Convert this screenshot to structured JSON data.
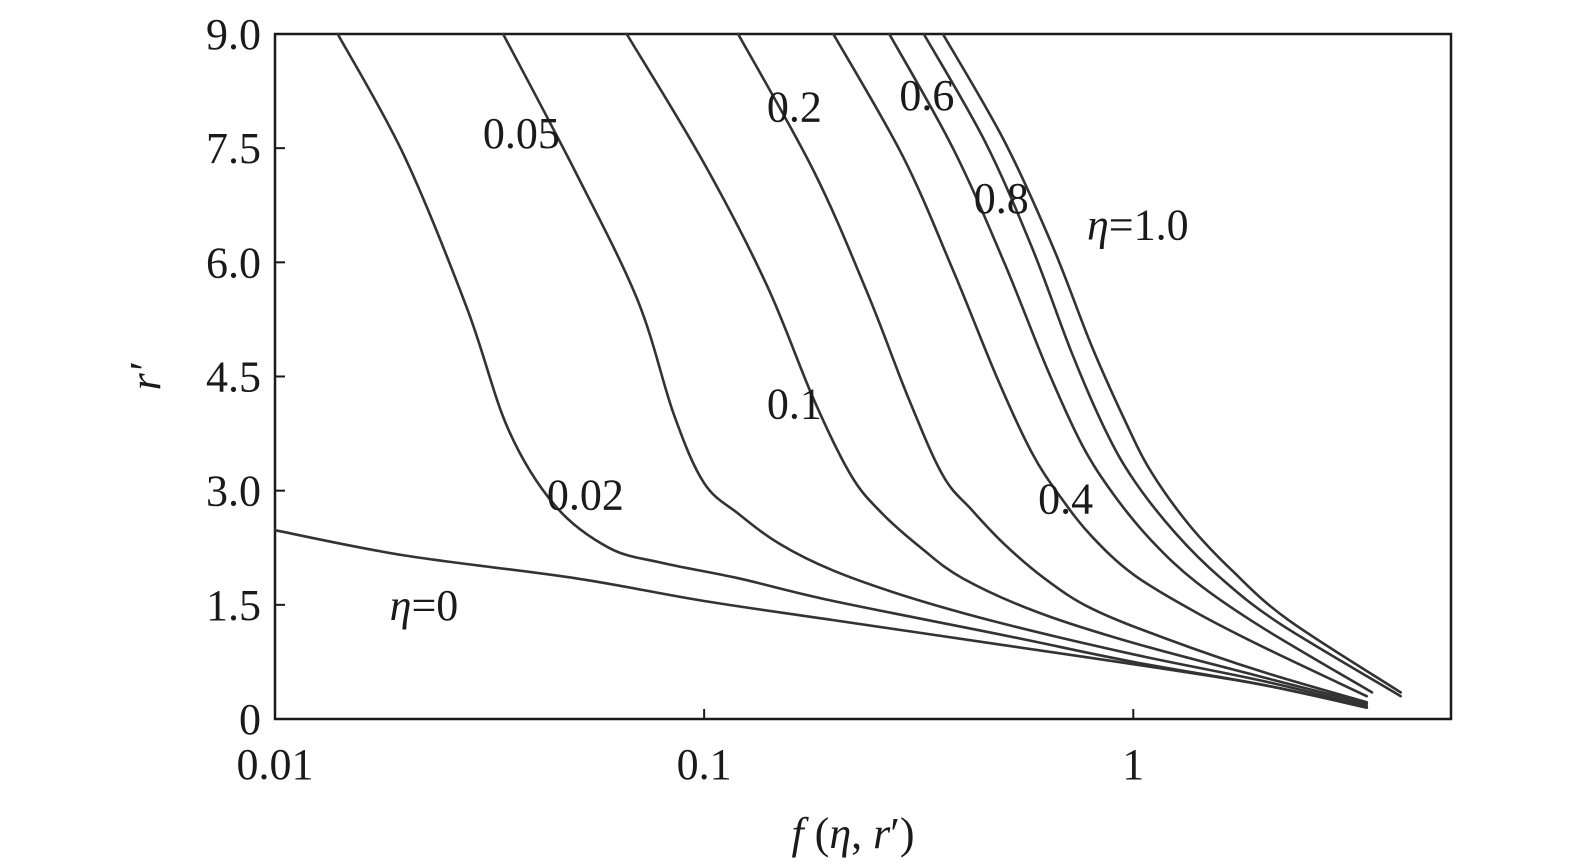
{
  "chart_data": {
    "type": "line",
    "title": "",
    "xlabel": "f (η, r′)",
    "ylabel": "r′",
    "x_scale": "log",
    "xlim": [
      0.01,
      5.5
    ],
    "ylim": [
      0,
      9.0
    ],
    "x_ticks": [
      {
        "value": 0.01,
        "label": "0.01"
      },
      {
        "value": 0.1,
        "label": "0.1"
      },
      {
        "value": 1,
        "label": "1"
      }
    ],
    "y_ticks": [
      {
        "value": 0,
        "label": "0"
      },
      {
        "value": 1.5,
        "label": "1.5"
      },
      {
        "value": 3.0,
        "label": "3.0"
      },
      {
        "value": 4.5,
        "label": "4.5"
      },
      {
        "value": 6.0,
        "label": "6.0"
      },
      {
        "value": 7.5,
        "label": "7.5"
      },
      {
        "value": 9.0,
        "label": "9.0"
      }
    ],
    "grid": false,
    "legend": "none",
    "series": [
      {
        "eta": 0,
        "label": "η=0",
        "label_pos": [
          0.0185,
          1.3
        ],
        "points": [
          [
            0.01,
            2.48
          ],
          [
            0.02,
            2.15
          ],
          [
            0.05,
            1.85
          ],
          [
            0.1,
            1.55
          ],
          [
            0.2,
            1.3
          ],
          [
            0.5,
            0.97
          ],
          [
            1.0,
            0.72
          ],
          [
            2.0,
            0.45
          ],
          [
            3.5,
            0.15
          ]
        ]
      },
      {
        "eta": 0.02,
        "label": "0.02",
        "label_pos": [
          0.043,
          2.75
        ],
        "points": [
          [
            0.014,
            9.0
          ],
          [
            0.02,
            7.4
          ],
          [
            0.028,
            5.4
          ],
          [
            0.035,
            3.8
          ],
          [
            0.045,
            2.8
          ],
          [
            0.06,
            2.25
          ],
          [
            0.08,
            2.05
          ],
          [
            0.12,
            1.85
          ],
          [
            0.2,
            1.55
          ],
          [
            0.5,
            1.1
          ],
          [
            1.0,
            0.75
          ],
          [
            2.0,
            0.45
          ],
          [
            3.5,
            0.15
          ]
        ]
      },
      {
        "eta": 0.05,
        "label": "0.05",
        "label_pos": [
          0.0305,
          7.5
        ],
        "points": [
          [
            0.034,
            9.0
          ],
          [
            0.05,
            7.2
          ],
          [
            0.07,
            5.5
          ],
          [
            0.085,
            4.0
          ],
          [
            0.1,
            3.1
          ],
          [
            0.12,
            2.7
          ],
          [
            0.15,
            2.3
          ],
          [
            0.2,
            1.95
          ],
          [
            0.3,
            1.6
          ],
          [
            0.5,
            1.25
          ],
          [
            1.0,
            0.85
          ],
          [
            2.0,
            0.5
          ],
          [
            3.5,
            0.17
          ]
        ]
      },
      {
        "eta": 0.1,
        "label": "0.1",
        "label_pos": [
          0.14,
          3.95
        ],
        "points": [
          [
            0.066,
            9.0
          ],
          [
            0.1,
            7.3
          ],
          [
            0.14,
            5.7
          ],
          [
            0.18,
            4.2
          ],
          [
            0.22,
            3.2
          ],
          [
            0.26,
            2.7
          ],
          [
            0.32,
            2.25
          ],
          [
            0.4,
            1.85
          ],
          [
            0.6,
            1.4
          ],
          [
            1.0,
            1.0
          ],
          [
            2.0,
            0.55
          ],
          [
            3.5,
            0.2
          ]
        ]
      },
      {
        "eta": 0.2,
        "label": "0.2",
        "label_pos": [
          0.14,
          7.85
        ],
        "points": [
          [
            0.12,
            9.0
          ],
          [
            0.18,
            7.2
          ],
          [
            0.24,
            5.6
          ],
          [
            0.3,
            4.2
          ],
          [
            0.36,
            3.2
          ],
          [
            0.42,
            2.75
          ],
          [
            0.5,
            2.3
          ],
          [
            0.62,
            1.85
          ],
          [
            0.8,
            1.45
          ],
          [
            1.2,
            1.05
          ],
          [
            2.0,
            0.62
          ],
          [
            3.5,
            0.22
          ]
        ]
      },
      {
        "eta": 0.4,
        "label": "0.4",
        "label_pos": [
          0.6,
          2.7
        ],
        "points": [
          [
            0.2,
            9.0
          ],
          [
            0.29,
            7.4
          ],
          [
            0.38,
            5.9
          ],
          [
            0.48,
            4.5
          ],
          [
            0.58,
            3.5
          ],
          [
            0.68,
            2.9
          ],
          [
            0.8,
            2.4
          ],
          [
            1.0,
            1.9
          ],
          [
            1.4,
            1.4
          ],
          [
            2.0,
            0.95
          ],
          [
            3.5,
            0.3
          ]
        ]
      },
      {
        "eta": 0.6,
        "label": "0.6",
        "label_pos": [
          0.285,
          8.0
        ],
        "points": [
          [
            0.27,
            9.0
          ],
          [
            0.38,
            7.5
          ],
          [
            0.5,
            6.0
          ],
          [
            0.63,
            4.6
          ],
          [
            0.76,
            3.6
          ],
          [
            0.9,
            2.95
          ],
          [
            1.1,
            2.35
          ],
          [
            1.4,
            1.8
          ],
          [
            2.0,
            1.2
          ],
          [
            3.6,
            0.35
          ]
        ]
      },
      {
        "eta": 0.8,
        "label": "0.8",
        "label_pos": [
          0.425,
          6.65
        ],
        "points": [
          [
            0.325,
            9.0
          ],
          [
            0.45,
            7.6
          ],
          [
            0.58,
            6.2
          ],
          [
            0.72,
            4.8
          ],
          [
            0.86,
            3.8
          ],
          [
            1.0,
            3.15
          ],
          [
            1.25,
            2.45
          ],
          [
            1.6,
            1.85
          ],
          [
            2.2,
            1.25
          ],
          [
            4.2,
            0.3
          ]
        ]
      },
      {
        "eta": 1.0,
        "label": "η=1.0",
        "label_pos": [
          0.78,
          6.3
        ],
        "points": [
          [
            0.36,
            9.0
          ],
          [
            0.5,
            7.6
          ],
          [
            0.65,
            6.2
          ],
          [
            0.8,
            4.9
          ],
          [
            0.96,
            3.9
          ],
          [
            1.1,
            3.25
          ],
          [
            1.35,
            2.55
          ],
          [
            1.7,
            1.95
          ],
          [
            2.3,
            1.3
          ],
          [
            4.2,
            0.35
          ]
        ]
      }
    ]
  }
}
